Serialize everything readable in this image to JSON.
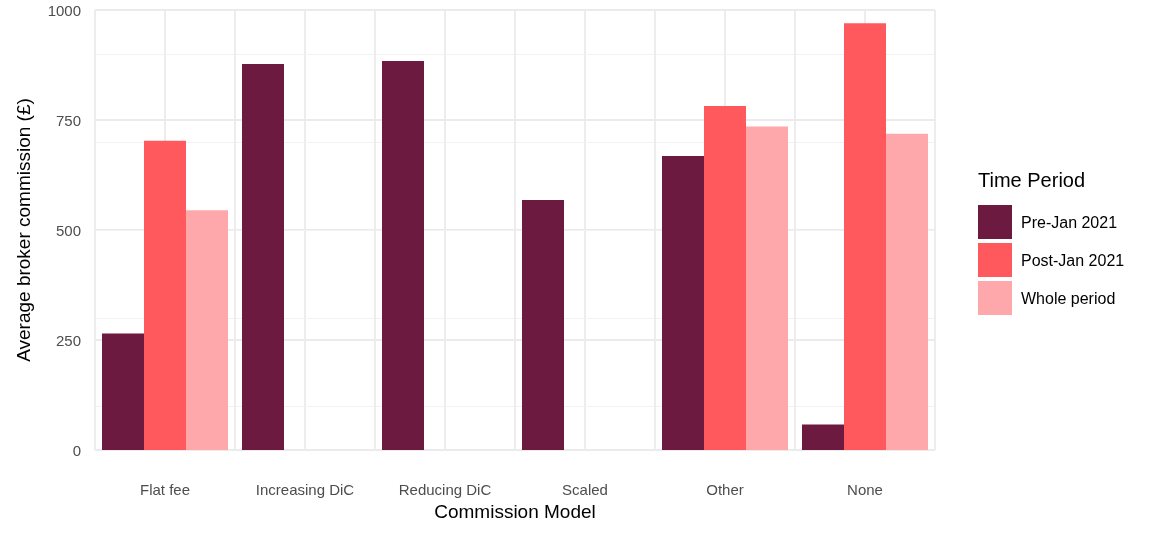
{
  "chart_data": {
    "type": "bar",
    "xlabel": "Commission Model",
    "ylabel": "Average broker commission (£)",
    "legend_title": "Time Period",
    "categories": [
      "Flat fee",
      "Increasing DiC",
      "Reducing DiC",
      "Scaled",
      "Other",
      "None"
    ],
    "series": [
      {
        "name": "Pre-Jan 2021",
        "color": "#6d1a41",
        "values": [
          265,
          877,
          884,
          568,
          668,
          58
        ]
      },
      {
        "name": "Post-Jan 2021",
        "color": "#ff595e",
        "values": [
          703,
          null,
          null,
          null,
          782,
          970
        ]
      },
      {
        "name": "Whole period",
        "color": "#ffa8ab",
        "values": [
          545,
          null,
          null,
          null,
          735,
          719
        ]
      }
    ],
    "ylim": [
      0,
      1000
    ],
    "yticks": [
      0,
      250,
      500,
      750,
      1000
    ],
    "grid": true,
    "legend": "right"
  }
}
